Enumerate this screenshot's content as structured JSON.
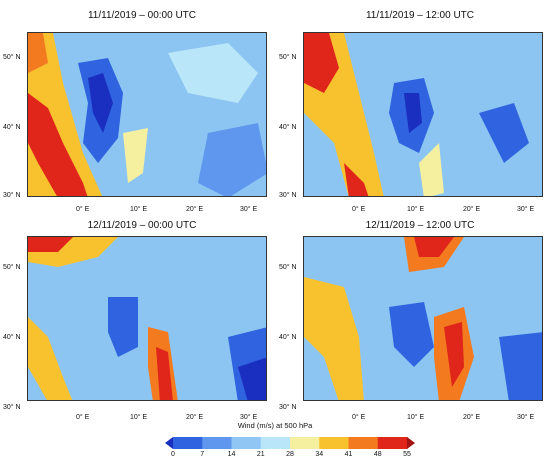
{
  "panels": [
    {
      "title": "11/11/2019 – 00:00 UTC"
    },
    {
      "title": "11/11/2019 – 12:00 UTC"
    },
    {
      "title": "12/11/2019 – 00:00 UTC"
    },
    {
      "title": "12/11/2019 – 12:00 UTC"
    }
  ],
  "lat_labels": [
    "50° N",
    "40° N",
    "30° N"
  ],
  "lon_labels": [
    "0° E",
    "10° E",
    "20° E",
    "30° E"
  ],
  "colorbar": {
    "label": "Wind (m/s) at 500 hPa",
    "ticks": [
      "0",
      "7",
      "14",
      "21",
      "28",
      "34",
      "41",
      "48",
      "55"
    ],
    "colors": [
      "#1a2fbf",
      "#2f63e0",
      "#5f97ee",
      "#8fc6f4",
      "#b9e6f8",
      "#f5f0a0",
      "#f8c22f",
      "#f47a1f",
      "#e0251a",
      "#a31212"
    ]
  }
}
